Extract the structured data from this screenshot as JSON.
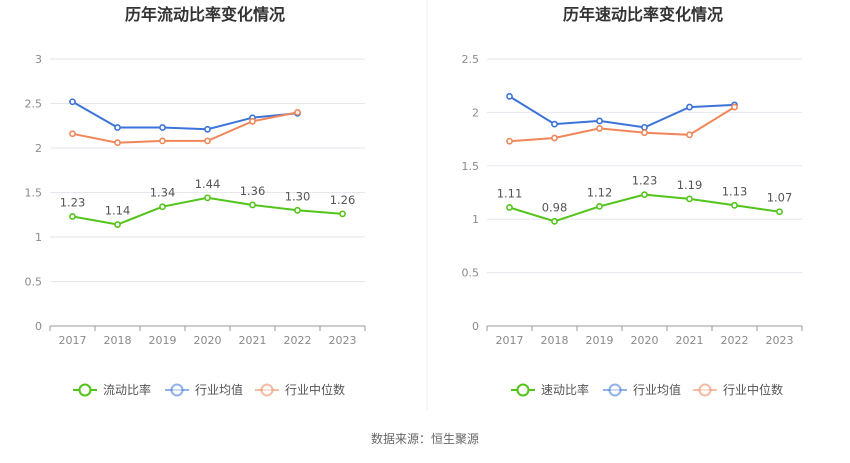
{
  "source_label": "数据来源：恒生聚源",
  "chart_data": [
    {
      "type": "line",
      "title": "历年流动比率变化情况",
      "categories": [
        "2017",
        "2018",
        "2019",
        "2020",
        "2021",
        "2022",
        "2023"
      ],
      "ylim": [
        0,
        3
      ],
      "yticks": [
        "0",
        "0.5",
        "1",
        "1.5",
        "2",
        "2.5",
        "3"
      ],
      "ytick_values": [
        0,
        0.5,
        1,
        1.5,
        2,
        2.5,
        3
      ],
      "grid": true,
      "legend_position": "bottom",
      "series": [
        {
          "name": "流动比率",
          "color": "#52c41a",
          "values": [
            1.23,
            1.14,
            1.34,
            1.44,
            1.36,
            1.3,
            1.26
          ],
          "labels": [
            "1.23",
            "1.14",
            "1.34",
            "1.44",
            "1.36",
            "1.30",
            "1.26"
          ]
        },
        {
          "name": "行业均值",
          "color": "#3b73d9",
          "values": [
            2.52,
            2.23,
            2.23,
            2.21,
            2.34,
            2.39,
            null
          ]
        },
        {
          "name": "行业中位数",
          "color": "#f0875a",
          "values": [
            2.16,
            2.06,
            2.08,
            2.08,
            2.3,
            2.4,
            null
          ]
        }
      ]
    },
    {
      "type": "line",
      "title": "历年速动比率变化情况",
      "categories": [
        "2017",
        "2018",
        "2019",
        "2020",
        "2021",
        "2022",
        "2023"
      ],
      "ylim": [
        0,
        2.5
      ],
      "yticks": [
        "0",
        "0.5",
        "1",
        "1.5",
        "2",
        "2.5"
      ],
      "ytick_values": [
        0,
        0.5,
        1,
        1.5,
        2,
        2.5
      ],
      "grid": true,
      "legend_position": "bottom",
      "series": [
        {
          "name": "速动比率",
          "color": "#52c41a",
          "values": [
            1.11,
            0.98,
            1.12,
            1.23,
            1.19,
            1.13,
            1.07
          ],
          "labels": [
            "1.11",
            "0.98",
            "1.12",
            "1.23",
            "1.19",
            "1.13",
            "1.07"
          ]
        },
        {
          "name": "行业均值",
          "color": "#3b73d9",
          "values": [
            2.15,
            1.89,
            1.92,
            1.86,
            2.05,
            2.07,
            null
          ]
        },
        {
          "name": "行业中位数",
          "color": "#f0875a",
          "values": [
            1.73,
            1.76,
            1.85,
            1.81,
            1.79,
            2.05,
            null
          ]
        }
      ]
    }
  ]
}
